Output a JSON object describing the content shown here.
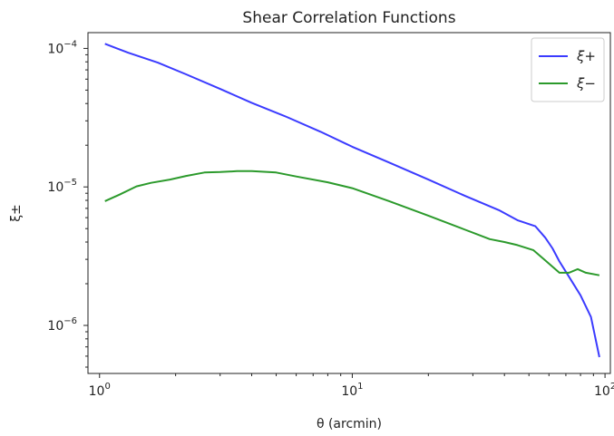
{
  "chart_data": {
    "type": "line",
    "title": "Shear Correlation Functions",
    "xlabel": "θ (arcmin)",
    "ylabel": "ξ±",
    "xscale": "log",
    "yscale": "log",
    "xlim": [
      0.9,
      105
    ],
    "ylim": [
      4.5e-07,
      0.00013
    ],
    "xticks": [
      {
        "value": 1,
        "base": "10",
        "exp": "0"
      },
      {
        "value": 10,
        "base": "10",
        "exp": "1"
      },
      {
        "value": 100,
        "base": "10",
        "exp": "2"
      }
    ],
    "yticks": [
      {
        "value": 1e-06,
        "base": "10",
        "exp": "−6"
      },
      {
        "value": 1e-05,
        "base": "10",
        "exp": "−5"
      },
      {
        "value": 0.0001,
        "base": "10",
        "exp": "−4"
      }
    ],
    "grid": false,
    "legend_position": "top-right",
    "series": [
      {
        "name": "ξ+",
        "color": "#3b3bff",
        "x": [
          1.05,
          1.3,
          1.7,
          2.2,
          3,
          4,
          5.5,
          7.5,
          10,
          14,
          20,
          28,
          38,
          45,
          53,
          58,
          62,
          66,
          72,
          80,
          88,
          95
        ],
        "y": [
          0.000108,
          9.3e-05,
          7.9e-05,
          6.5e-05,
          5.1e-05,
          4.05e-05,
          3.2e-05,
          2.5e-05,
          1.95e-05,
          1.5e-05,
          1.13e-05,
          8.6e-06,
          6.8e-06,
          5.75e-06,
          5.2e-06,
          4.3e-06,
          3.6e-06,
          2.9e-06,
          2.25e-06,
          1.65e-06,
          1.15e-06,
          5.9e-07
        ]
      },
      {
        "name": "ξ−",
        "color": "#2c9a2c",
        "x": [
          1.05,
          1.2,
          1.4,
          1.6,
          1.9,
          2.2,
          2.6,
          3,
          3.5,
          4,
          5,
          6,
          8,
          10,
          14,
          20,
          28,
          35,
          40,
          45,
          52,
          58,
          66,
          72,
          78,
          84,
          95
        ],
        "y": [
          7.9e-06,
          8.8e-06,
          1.01e-05,
          1.07e-05,
          1.13e-05,
          1.2e-05,
          1.27e-05,
          1.28e-05,
          1.3e-05,
          1.3e-05,
          1.27e-05,
          1.19e-05,
          1.08e-05,
          9.8e-06,
          7.9e-06,
          6.2e-06,
          4.9e-06,
          4.2e-06,
          4e-06,
          3.8e-06,
          3.5e-06,
          2.95e-06,
          2.4e-06,
          2.4e-06,
          2.55e-06,
          2.4e-06,
          2.3e-06
        ]
      }
    ]
  }
}
